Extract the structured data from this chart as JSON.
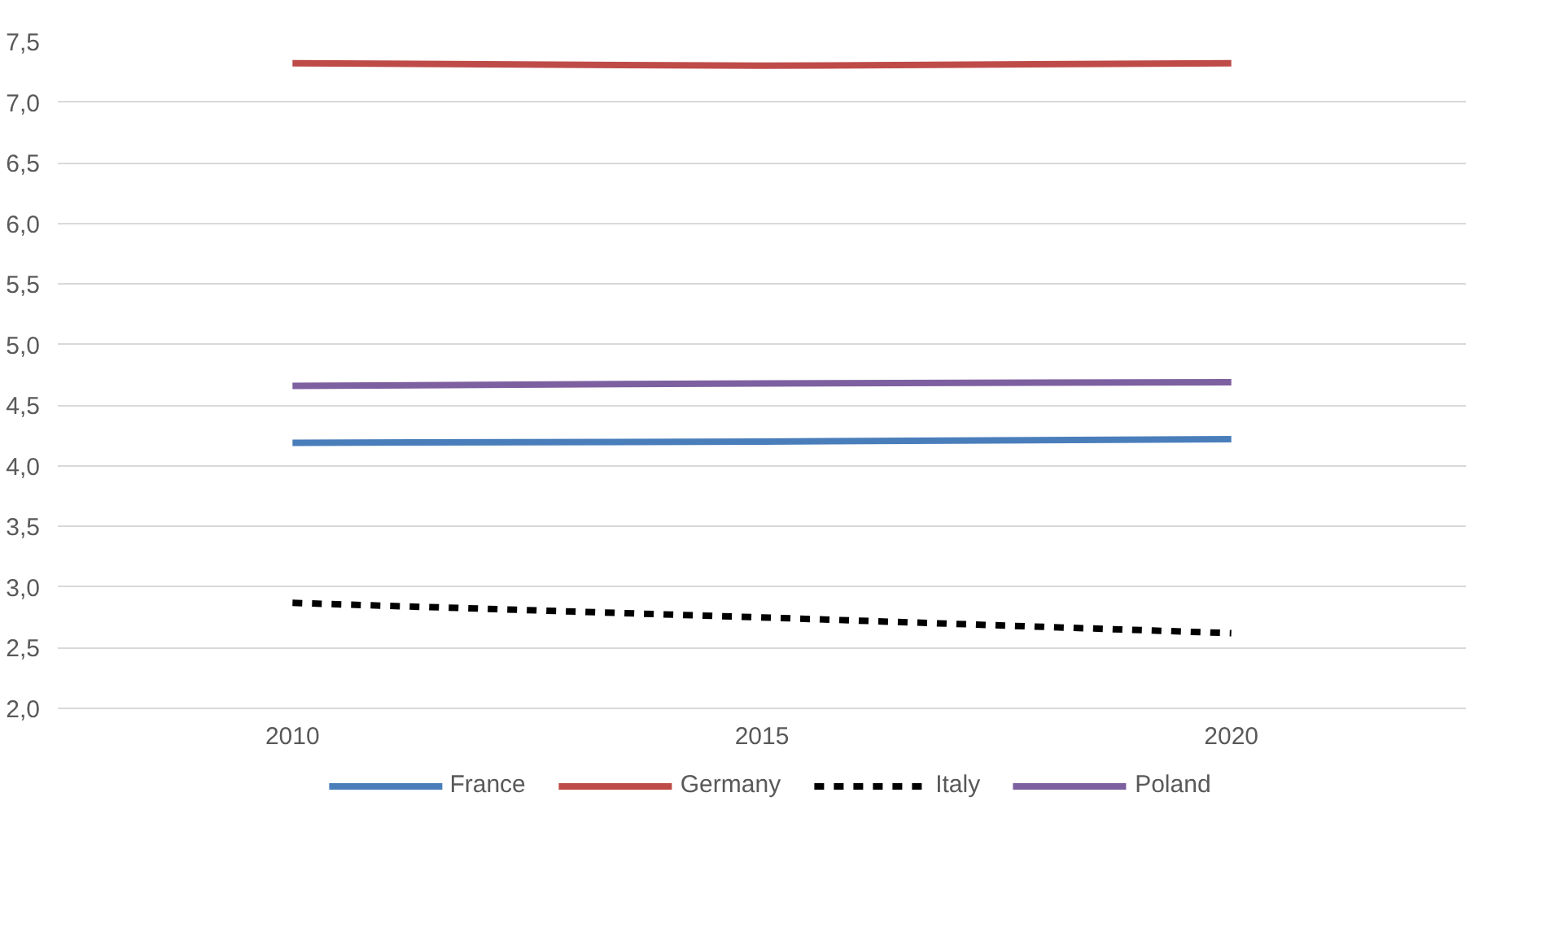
{
  "chart_data": {
    "type": "line",
    "categories": [
      "2010",
      "2015",
      "2020"
    ],
    "series": [
      {
        "name": "France",
        "color": "#4a7ebb",
        "values": [
          4.19,
          4.2,
          4.22
        ]
      },
      {
        "name": "Germany",
        "color": "#be4b48",
        "values": [
          7.32,
          7.3,
          7.32
        ]
      },
      {
        "name": "Italy",
        "color": "#000000",
        "values": [
          2.87,
          2.75,
          2.62
        ],
        "line_style": "dashed"
      },
      {
        "name": "Poland",
        "color": "#7d60a0",
        "values": [
          4.66,
          4.68,
          4.69
        ]
      }
    ],
    "ylim": [
      2.0,
      7.5
    ],
    "yticks": [
      {
        "value": 2.0,
        "label": "2,0"
      },
      {
        "value": 2.5,
        "label": "2,5"
      },
      {
        "value": 3.0,
        "label": "3,0"
      },
      {
        "value": 3.5,
        "label": "3,5"
      },
      {
        "value": 4.0,
        "label": "4,0"
      },
      {
        "value": 4.5,
        "label": "4,5"
      },
      {
        "value": 5.0,
        "label": "5,0"
      },
      {
        "value": 5.5,
        "label": "5,5"
      },
      {
        "value": 6.0,
        "label": "6,0"
      },
      {
        "value": 6.5,
        "label": "6,5"
      },
      {
        "value": 7.0,
        "label": "7,0"
      },
      {
        "value": 7.5,
        "label": "7,5"
      }
    ],
    "grid": "y",
    "legend": "bottom",
    "marker": "none",
    "line_style": "solid"
  }
}
